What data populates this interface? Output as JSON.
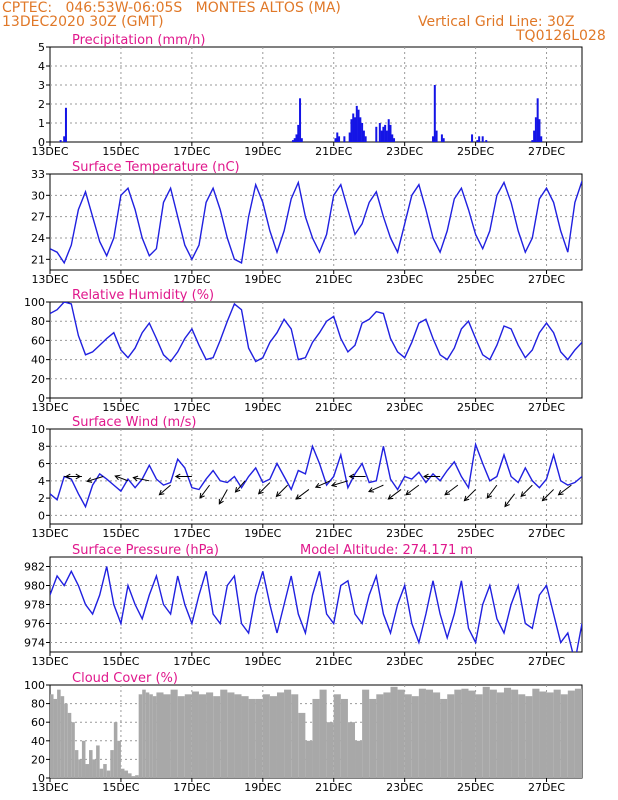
{
  "header": {
    "line1": "CPTEC:   046:53W-06:05S   MONTES ALTOS (MA)",
    "line2": "13DEC2020 30Z (GMT)",
    "grid_note": "Vertical Grid Line: 30Z",
    "code": "TQ0126L028"
  },
  "x_ticks": [
    "13DEC",
    "15DEC",
    "17DEC",
    "19DEC",
    "21DEC",
    "23DEC",
    "25DEC",
    "27DEC"
  ],
  "x_tick_days": [
    0,
    2,
    4,
    6,
    8,
    10,
    12,
    14
  ],
  "x_range_days": [
    0,
    15
  ],
  "colors": {
    "line": "#2020e0",
    "bar": "#1414e6",
    "cloud": "#a8a8a8",
    "title": "#e0188c",
    "header": "#e07828"
  },
  "chart_data": [
    {
      "id": "precip",
      "type": "bar",
      "title": "Precipitation (mm/h)",
      "ylim": [
        0,
        5
      ],
      "yticks": [
        0,
        1,
        2,
        3,
        4,
        5
      ],
      "x": [
        0.3,
        0.4,
        0.45,
        6.85,
        6.9,
        6.95,
        7.0,
        7.05,
        7.1,
        8.05,
        8.1,
        8.15,
        8.3,
        8.45,
        8.5,
        8.55,
        8.6,
        8.65,
        8.7,
        8.75,
        8.8,
        8.85,
        8.9,
        9.2,
        9.3,
        9.35,
        9.4,
        9.45,
        9.5,
        9.55,
        9.6,
        9.65,
        9.7,
        10.8,
        10.85,
        10.9,
        11.05,
        11.1,
        11.9,
        12.05,
        12.1,
        12.2,
        12.3,
        13.6,
        13.65,
        13.7,
        13.75,
        13.8,
        13.85
      ],
      "values": [
        0.1,
        0.3,
        1.8,
        0.1,
        0.2,
        0.4,
        0.9,
        2.3,
        0.2,
        0.2,
        0.5,
        0.3,
        0.3,
        0.5,
        1.2,
        1.5,
        1.3,
        1.9,
        1.7,
        1.3,
        1.0,
        0.6,
        0.3,
        0.8,
        1.0,
        0.6,
        0.8,
        0.9,
        0.6,
        1.2,
        0.9,
        0.4,
        0.2,
        0.3,
        3.0,
        0.6,
        0.4,
        0.2,
        0.4,
        0.1,
        0.3,
        0.3,
        0.1,
        0.1,
        0.6,
        1.3,
        2.3,
        1.2,
        0.3
      ]
    },
    {
      "id": "temp",
      "type": "line",
      "title": "Surface Temperature (nC)",
      "ylim": [
        19.5,
        33
      ],
      "yticks": [
        21,
        24,
        27,
        30,
        33
      ],
      "x": [
        0,
        0.2,
        0.4,
        0.6,
        0.8,
        1.0,
        1.2,
        1.4,
        1.6,
        1.8,
        2.0,
        2.2,
        2.4,
        2.6,
        2.8,
        3.0,
        3.2,
        3.4,
        3.6,
        3.8,
        4.0,
        4.2,
        4.4,
        4.6,
        4.8,
        5.0,
        5.2,
        5.4,
        5.6,
        5.8,
        6.0,
        6.2,
        6.4,
        6.6,
        6.8,
        7.0,
        7.2,
        7.4,
        7.6,
        7.8,
        8.0,
        8.2,
        8.4,
        8.6,
        8.8,
        9.0,
        9.2,
        9.4,
        9.6,
        9.8,
        10.0,
        10.2,
        10.4,
        10.6,
        10.8,
        11.0,
        11.2,
        11.4,
        11.6,
        11.8,
        12.0,
        12.2,
        12.4,
        12.6,
        12.8,
        13.0,
        13.2,
        13.4,
        13.6,
        13.8,
        14.0,
        14.2,
        14.4,
        14.6,
        14.8,
        15.0
      ],
      "values": [
        22.5,
        22,
        20.5,
        23,
        28,
        30.5,
        27,
        23.5,
        21.5,
        24,
        30,
        31,
        28,
        24,
        21.5,
        22.5,
        29,
        31,
        27,
        23,
        21,
        23,
        29,
        31,
        28,
        24,
        21,
        20.5,
        27,
        31.5,
        29,
        25,
        22,
        25,
        29.5,
        31.8,
        27,
        24,
        22,
        24.5,
        30,
        31.5,
        28,
        24.5,
        26,
        29,
        30.5,
        27,
        24,
        22,
        26,
        30,
        31.5,
        28,
        24,
        22,
        25,
        29.5,
        31,
        28,
        24.5,
        22.5,
        25,
        30,
        31.8,
        29,
        25,
        22,
        24,
        29.5,
        31,
        29,
        25,
        22,
        29,
        32
      ]
    },
    {
      "id": "rh",
      "type": "line",
      "title": "Relative Humidity (%)",
      "ylim": [
        0,
        100
      ],
      "yticks": [
        0,
        20,
        40,
        60,
        80,
        100
      ],
      "x": [
        0,
        0.2,
        0.4,
        0.6,
        0.8,
        1.0,
        1.2,
        1.4,
        1.6,
        1.8,
        2.0,
        2.2,
        2.4,
        2.6,
        2.8,
        3.0,
        3.2,
        3.4,
        3.6,
        3.8,
        4.0,
        4.2,
        4.4,
        4.6,
        4.8,
        5.0,
        5.2,
        5.4,
        5.6,
        5.8,
        6.0,
        6.2,
        6.4,
        6.6,
        6.8,
        7.0,
        7.2,
        7.4,
        7.6,
        7.8,
        8.0,
        8.2,
        8.4,
        8.6,
        8.8,
        9.0,
        9.2,
        9.4,
        9.6,
        9.8,
        10.0,
        10.2,
        10.4,
        10.6,
        10.8,
        11.0,
        11.2,
        11.4,
        11.6,
        11.8,
        12.0,
        12.2,
        12.4,
        12.6,
        12.8,
        13.0,
        13.2,
        13.4,
        13.6,
        13.8,
        14.0,
        14.2,
        14.4,
        14.6,
        14.8,
        15.0
      ],
      "values": [
        88,
        92,
        100,
        98,
        65,
        45,
        48,
        55,
        62,
        68,
        50,
        42,
        52,
        68,
        78,
        62,
        45,
        38,
        48,
        62,
        72,
        55,
        40,
        42,
        60,
        80,
        98,
        92,
        52,
        38,
        42,
        58,
        68,
        82,
        72,
        40,
        42,
        58,
        68,
        80,
        85,
        62,
        48,
        55,
        78,
        82,
        90,
        88,
        62,
        48,
        42,
        58,
        78,
        82,
        62,
        45,
        40,
        52,
        72,
        80,
        62,
        45,
        40,
        55,
        75,
        72,
        55,
        42,
        50,
        68,
        78,
        68,
        48,
        40,
        50,
        58
      ]
    },
    {
      "id": "wind",
      "type": "line",
      "title": "Surface Wind (m/s)",
      "ylim": [
        -1,
        10
      ],
      "yticks": [
        0,
        2,
        4,
        6,
        8,
        10
      ],
      "x": [
        0,
        0.2,
        0.4,
        0.6,
        0.8,
        1.0,
        1.2,
        1.4,
        1.6,
        1.8,
        2.0,
        2.2,
        2.4,
        2.6,
        2.8,
        3.0,
        3.2,
        3.4,
        3.6,
        3.8,
        4.0,
        4.2,
        4.4,
        4.6,
        4.8,
        5.0,
        5.2,
        5.4,
        5.6,
        5.8,
        6.0,
        6.2,
        6.4,
        6.6,
        6.8,
        7.0,
        7.2,
        7.4,
        7.6,
        7.8,
        8.0,
        8.2,
        8.4,
        8.6,
        8.8,
        9.0,
        9.2,
        9.4,
        9.6,
        9.8,
        10.0,
        10.2,
        10.4,
        10.6,
        10.8,
        11.0,
        11.2,
        11.4,
        11.6,
        11.8,
        12.0,
        12.2,
        12.4,
        12.6,
        12.8,
        13.0,
        13.2,
        13.4,
        13.6,
        13.8,
        14.0,
        14.2,
        14.4,
        14.6,
        14.8,
        15.0
      ],
      "values": [
        2.5,
        1.8,
        4.5,
        4.2,
        2.5,
        1.0,
        3.5,
        4.8,
        4.2,
        3.5,
        2.8,
        4.2,
        3.2,
        4.2,
        5.8,
        4.2,
        3.5,
        3.8,
        6.5,
        5.5,
        3.2,
        3.0,
        4.2,
        5.2,
        4.0,
        3.8,
        4.5,
        3.2,
        4.5,
        5.5,
        3.8,
        4.2,
        6.0,
        4.5,
        3.0,
        5.2,
        4.8,
        8.0,
        6.0,
        3.5,
        4.5,
        7.0,
        3.2,
        4.8,
        6.0,
        3.8,
        4.0,
        8.0,
        4.2,
        3.0,
        4.5,
        4.2,
        5.0,
        3.8,
        4.8,
        4.0,
        5.2,
        6.2,
        4.5,
        3.2,
        8.2,
        6.0,
        4.0,
        4.5,
        7.0,
        4.5,
        3.8,
        5.5,
        4.0,
        3.2,
        4.2,
        7.0,
        4.0,
        3.5,
        3.8,
        4.5
      ]
    },
    {
      "id": "pres",
      "type": "line",
      "title": "Surface Pressure (hPa)",
      "annotation": "Model Altitude: 274.171 m",
      "ylim": [
        973,
        983
      ],
      "yticks": [
        974,
        976,
        978,
        980,
        982
      ],
      "x": [
        0,
        0.2,
        0.4,
        0.6,
        0.8,
        1.0,
        1.2,
        1.4,
        1.6,
        1.8,
        2.0,
        2.2,
        2.4,
        2.6,
        2.8,
        3.0,
        3.2,
        3.4,
        3.6,
        3.8,
        4.0,
        4.2,
        4.4,
        4.6,
        4.8,
        5.0,
        5.2,
        5.4,
        5.6,
        5.8,
        6.0,
        6.2,
        6.4,
        6.6,
        6.8,
        7.0,
        7.2,
        7.4,
        7.6,
        7.8,
        8.0,
        8.2,
        8.4,
        8.6,
        8.8,
        9.0,
        9.2,
        9.4,
        9.6,
        9.8,
        10.0,
        10.2,
        10.4,
        10.6,
        10.8,
        11.0,
        11.2,
        11.4,
        11.6,
        11.8,
        12.0,
        12.2,
        12.4,
        12.6,
        12.8,
        13.0,
        13.2,
        13.4,
        13.6,
        13.8,
        14.0,
        14.2,
        14.4,
        14.6,
        14.8,
        15.0
      ],
      "values": [
        979,
        981,
        980,
        981.5,
        980,
        978,
        977,
        979,
        982,
        978,
        976,
        980,
        978,
        976.5,
        979,
        981,
        978,
        977,
        981,
        978,
        976,
        979,
        981.5,
        977,
        976,
        980,
        981,
        976,
        975,
        979,
        981.5,
        978,
        975,
        978,
        981,
        977,
        975,
        979,
        981.5,
        977,
        976,
        980,
        980.5,
        977,
        976,
        979,
        981,
        977,
        975,
        978,
        980,
        976,
        974,
        977,
        980.5,
        977,
        974.5,
        977,
        980.5,
        975.5,
        974,
        978,
        980,
        976.5,
        975,
        978,
        980,
        976,
        975.5,
        979,
        980,
        977,
        974,
        975,
        972,
        976
      ]
    },
    {
      "id": "cloud",
      "type": "area",
      "title": "Cloud Cover (%)",
      "ylim": [
        0,
        100
      ],
      "yticks": [
        0,
        20,
        40,
        60,
        80,
        100
      ],
      "x": [
        0,
        0.1,
        0.2,
        0.3,
        0.4,
        0.5,
        0.6,
        0.7,
        0.8,
        0.9,
        1.0,
        1.1,
        1.2,
        1.3,
        1.4,
        1.5,
        1.6,
        1.7,
        1.8,
        1.9,
        2.0,
        2.1,
        2.2,
        2.3,
        2.4,
        2.5,
        2.6,
        2.7,
        2.8,
        2.9,
        3.0,
        3.2,
        3.4,
        3.6,
        3.8,
        4.0,
        4.2,
        4.4,
        4.6,
        4.8,
        5.0,
        5.2,
        5.4,
        5.6,
        5.8,
        6.0,
        6.2,
        6.4,
        6.6,
        6.8,
        7.0,
        7.2,
        7.4,
        7.6,
        7.8,
        8.0,
        8.2,
        8.4,
        8.6,
        8.8,
        9.0,
        9.2,
        9.4,
        9.6,
        9.8,
        10.0,
        10.2,
        10.4,
        10.6,
        10.8,
        11.0,
        11.2,
        11.4,
        11.6,
        11.8,
        12.0,
        12.2,
        12.4,
        12.6,
        12.8,
        13.0,
        13.2,
        13.4,
        13.6,
        13.8,
        14.0,
        14.2,
        14.4,
        14.6,
        14.8,
        15.0
      ],
      "values": [
        90,
        85,
        95,
        88,
        80,
        70,
        60,
        30,
        20,
        40,
        15,
        30,
        20,
        35,
        10,
        15,
        8,
        30,
        60,
        40,
        10,
        8,
        5,
        2,
        3,
        90,
        95,
        92,
        90,
        88,
        92,
        90,
        95,
        88,
        90,
        93,
        90,
        92,
        88,
        95,
        92,
        90,
        88,
        85,
        85,
        90,
        88,
        92,
        95,
        90,
        70,
        40,
        85,
        95,
        60,
        90,
        85,
        60,
        40,
        95,
        85,
        90,
        92,
        98,
        95,
        90,
        88,
        96,
        95,
        92,
        85,
        90,
        95,
        96,
        94,
        90,
        98,
        95,
        92,
        97,
        95,
        90,
        88,
        96,
        93,
        92,
        95,
        90,
        94,
        96,
        98
      ]
    }
  ],
  "wind_arrows": [
    {
      "x": 0.4,
      "y": 4.5,
      "u": 1,
      "v": 0
    },
    {
      "x": 0.9,
      "y": 4.5,
      "u": -1,
      "v": 0
    },
    {
      "x": 1.5,
      "y": 4.5,
      "u": -1,
      "v": -0.3
    },
    {
      "x": 2.2,
      "y": 4.0,
      "u": -0.8,
      "v": 0.3
    },
    {
      "x": 2.8,
      "y": 4.0,
      "u": -1,
      "v": 0.2
    },
    {
      "x": 3.4,
      "y": 3.5,
      "u": -0.7,
      "v": -0.6
    },
    {
      "x": 4.0,
      "y": 4.5,
      "u": -1,
      "v": 0
    },
    {
      "x": 4.5,
      "y": 3.5,
      "u": -0.6,
      "v": -0.8
    },
    {
      "x": 5.0,
      "y": 3.0,
      "u": -0.5,
      "v": -0.9
    },
    {
      "x": 5.5,
      "y": 4.0,
      "u": -0.6,
      "v": -0.7
    },
    {
      "x": 6.2,
      "y": 3.8,
      "u": -0.7,
      "v": -0.7
    },
    {
      "x": 6.7,
      "y": 3.5,
      "u": -0.7,
      "v": -0.7
    },
    {
      "x": 7.3,
      "y": 3.0,
      "u": -0.8,
      "v": -0.6
    },
    {
      "x": 7.9,
      "y": 4.0,
      "u": -0.9,
      "v": -0.4
    },
    {
      "x": 8.4,
      "y": 4.0,
      "u": -1,
      "v": -0.3
    },
    {
      "x": 8.9,
      "y": 4.5,
      "u": -1,
      "v": 0
    },
    {
      "x": 9.4,
      "y": 3.5,
      "u": -0.9,
      "v": -0.4
    },
    {
      "x": 9.9,
      "y": 3.0,
      "u": -0.8,
      "v": -0.6
    },
    {
      "x": 10.4,
      "y": 3.5,
      "u": -0.8,
      "v": -0.6
    },
    {
      "x": 11.0,
      "y": 4.5,
      "u": -1,
      "v": 0
    },
    {
      "x": 11.5,
      "y": 3.5,
      "u": -0.8,
      "v": -0.6
    },
    {
      "x": 12.0,
      "y": 3.0,
      "u": -0.7,
      "v": -0.7
    },
    {
      "x": 12.6,
      "y": 3.5,
      "u": -0.6,
      "v": -0.8
    },
    {
      "x": 13.1,
      "y": 2.5,
      "u": -0.6,
      "v": -0.8
    },
    {
      "x": 13.6,
      "y": 3.5,
      "u": -0.7,
      "v": -0.7
    },
    {
      "x": 14.2,
      "y": 3.0,
      "u": -0.7,
      "v": -0.7
    },
    {
      "x": 14.7,
      "y": 3.5,
      "u": -0.8,
      "v": -0.6
    }
  ]
}
